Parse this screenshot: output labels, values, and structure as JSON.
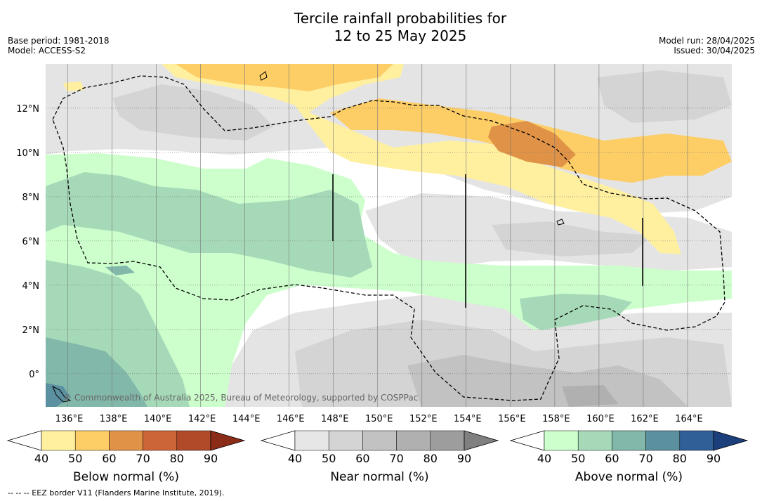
{
  "header": {
    "title_line1": "Tercile rainfall probabilities for",
    "title_line2": "12 to 25 May 2025",
    "base_period": "Base period: 1981-2018",
    "model": "Model: ACCESS-S2",
    "model_run": "Model run: 28/04/2025",
    "issued": "Issued: 30/04/2025"
  },
  "map": {
    "copyright": "© Commonwealth of Australia 2025, Bureau of Meteorology, supported by COSPPac",
    "lat_labels": [
      "12°N",
      "10°N",
      "8°N",
      "6°N",
      "4°N",
      "2°N",
      "0°"
    ],
    "lat_values": [
      12,
      10,
      8,
      6,
      4,
      2,
      0
    ],
    "lon_labels": [
      "136°E",
      "138°E",
      "140°E",
      "142°E",
      "144°E",
      "146°E",
      "148°E",
      "150°E",
      "152°E",
      "154°E",
      "156°E",
      "158°E",
      "160°E",
      "162°E",
      "164°E"
    ],
    "lon_values": [
      136,
      138,
      140,
      142,
      144,
      146,
      148,
      150,
      152,
      154,
      156,
      158,
      160,
      162,
      164
    ],
    "lon_range": [
      135.0,
      166.0
    ],
    "lat_range": [
      -1.5,
      14.0
    ],
    "grid": true
  },
  "colorbars": [
    {
      "label": "Below normal (%)",
      "ticks": [
        "40",
        "50",
        "60",
        "70",
        "80",
        "90"
      ],
      "colors": [
        "#fff0a0",
        "#fdcd66",
        "#e09346",
        "#cd6637",
        "#b04a28"
      ],
      "under_color": "#ffffff",
      "over_color": "#8b2c18"
    },
    {
      "label": "Near normal (%)",
      "ticks": [
        "40",
        "50",
        "60",
        "70",
        "80",
        "90"
      ],
      "colors": [
        "#e6e6e6",
        "#d4d4d4",
        "#c2c2c2",
        "#b0b0b0",
        "#9d9d9d"
      ],
      "under_color": "#ffffff",
      "over_color": "#808080"
    },
    {
      "label": "Above normal (%)",
      "ticks": [
        "40",
        "50",
        "60",
        "70",
        "80",
        "90"
      ],
      "colors": [
        "#ccffcc",
        "#a6d9b8",
        "#82b8aa",
        "#5b90a0",
        "#2f5f96"
      ],
      "under_color": "#ffffff",
      "over_color": "#1b3f7a"
    }
  ],
  "footnote": "--  --  -- EEZ border V11 (Flanders Marine Institute, 2019)."
}
